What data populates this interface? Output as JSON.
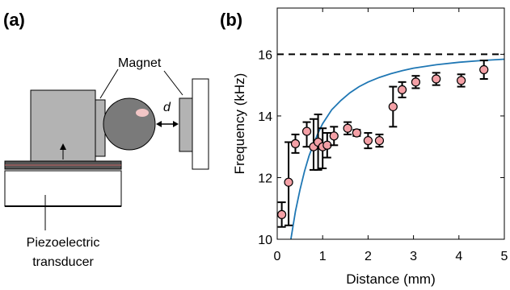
{
  "panels": {
    "a": {
      "label": "(a)"
    },
    "b": {
      "label": "(b)"
    }
  },
  "schematic": {
    "magnet_label": "Magnet",
    "distance_label": "d",
    "transducer_label_line1": "Piezoelectric",
    "transducer_label_line2": "transducer"
  },
  "colors": {
    "marker_fill": "#f4a0a6",
    "fit_line": "#1f77b4",
    "reference_line": "#000000",
    "block_fill": "#b3b3b3",
    "sphere_fill": "#7a7a7a"
  },
  "chart_data": {
    "type": "scatter",
    "title": "",
    "xlabel": "Distance (mm)",
    "ylabel": "Frequency (kHz)",
    "xlim": [
      0,
      5
    ],
    "ylim": [
      10,
      17.5
    ],
    "xticks": [
      "0",
      "1",
      "2",
      "3",
      "4",
      "5"
    ],
    "yticks": [
      "10",
      "12",
      "14",
      "16"
    ],
    "grid": false,
    "reference_line": {
      "y": 16,
      "style": "dashed"
    },
    "points": [
      {
        "x": 0.1,
        "y": 10.8,
        "err_low": 0.4,
        "err_high": 0.4
      },
      {
        "x": 0.25,
        "y": 11.85,
        "err_low": 1.4,
        "err_high": 1.3
      },
      {
        "x": 0.4,
        "y": 13.1,
        "err_low": 0.3,
        "err_high": 0.3
      },
      {
        "x": 0.65,
        "y": 13.5,
        "err_low": 0.5,
        "err_high": 0.3
      },
      {
        "x": 0.8,
        "y": 13.0,
        "err_low": 0.75,
        "err_high": 0.9
      },
      {
        "x": 0.9,
        "y": 13.15,
        "err_low": 0.9,
        "err_high": 0.9
      },
      {
        "x": 1.0,
        "y": 13.0,
        "err_low": 0.7,
        "err_high": 0.6
      },
      {
        "x": 1.1,
        "y": 13.05,
        "err_low": 0.4,
        "err_high": 0.4
      },
      {
        "x": 1.25,
        "y": 13.35,
        "err_low": 0.3,
        "err_high": 0.3
      },
      {
        "x": 1.55,
        "y": 13.6,
        "err_low": 0.2,
        "err_high": 0.2
      },
      {
        "x": 1.75,
        "y": 13.45,
        "err_low": 0.1,
        "err_high": 0.1
      },
      {
        "x": 2.0,
        "y": 13.2,
        "err_low": 0.25,
        "err_high": 0.25
      },
      {
        "x": 2.25,
        "y": 13.2,
        "err_low": 0.2,
        "err_high": 0.2
      },
      {
        "x": 2.55,
        "y": 14.3,
        "err_low": 0.65,
        "err_high": 0.65
      },
      {
        "x": 2.75,
        "y": 14.85,
        "err_low": 0.25,
        "err_high": 0.25
      },
      {
        "x": 3.05,
        "y": 15.1,
        "err_low": 0.2,
        "err_high": 0.2
      },
      {
        "x": 3.5,
        "y": 15.2,
        "err_low": 0.2,
        "err_high": 0.2
      },
      {
        "x": 4.05,
        "y": 15.15,
        "err_low": 0.2,
        "err_high": 0.2
      },
      {
        "x": 4.55,
        "y": 15.5,
        "err_low": 0.3,
        "err_high": 0.3
      }
    ],
    "fit_curve": {
      "x": [
        0.3,
        0.4,
        0.5,
        0.6,
        0.7,
        0.8,
        0.9,
        1.0,
        1.2,
        1.4,
        1.6,
        1.8,
        2.0,
        2.25,
        2.5,
        2.75,
        3.0,
        3.5,
        4.0,
        4.5,
        5.0
      ],
      "y": [
        10.0,
        10.9,
        11.6,
        12.2,
        12.7,
        13.1,
        13.45,
        13.75,
        14.2,
        14.5,
        14.75,
        14.95,
        15.1,
        15.25,
        15.37,
        15.47,
        15.55,
        15.66,
        15.74,
        15.8,
        15.84
      ]
    }
  }
}
